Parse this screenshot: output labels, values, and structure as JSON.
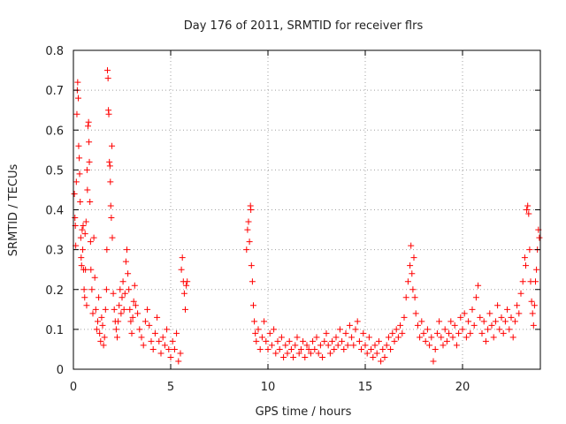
{
  "chart_data": {
    "type": "scatter",
    "title": "Day 176 of 2011, SRMTID for receiver flrs",
    "xlabel": "GPS time / hours",
    "ylabel": "SRMTID / TECUs",
    "xlim": [
      0,
      24
    ],
    "ylim": [
      0,
      0.8
    ],
    "x_ticks": [
      0,
      5,
      10,
      15,
      20
    ],
    "x_tick_labels": [
      "0",
      "5",
      "10",
      "15",
      "20"
    ],
    "y_ticks": [
      0,
      0.1,
      0.2,
      0.3,
      0.4,
      0.5,
      0.6,
      0.7,
      0.8
    ],
    "y_tick_labels": [
      "0",
      "0.1",
      "0.2",
      "0.3",
      "0.4",
      "0.5",
      "0.6",
      "0.7",
      "0.8"
    ],
    "grid": true,
    "marker": "+",
    "colors": {
      "points": "#ff0000",
      "grid": "#a0a0a0",
      "axes": "#000000"
    },
    "series": [
      {
        "name": "SRMTID flrs",
        "points": [
          [
            0.05,
            0.44
          ],
          [
            0.08,
            0.38
          ],
          [
            0.1,
            0.36
          ],
          [
            0.12,
            0.31
          ],
          [
            0.15,
            0.47
          ],
          [
            0.18,
            0.64
          ],
          [
            0.2,
            0.7
          ],
          [
            0.22,
            0.72
          ],
          [
            0.25,
            0.68
          ],
          [
            0.27,
            0.56
          ],
          [
            0.3,
            0.53
          ],
          [
            0.32,
            0.49
          ],
          [
            0.35,
            0.42
          ],
          [
            0.38,
            0.33
          ],
          [
            0.4,
            0.28
          ],
          [
            0.42,
            0.26
          ],
          [
            0.45,
            0.35
          ],
          [
            0.48,
            0.3
          ],
          [
            0.5,
            0.36
          ],
          [
            0.52,
            0.25
          ],
          [
            0.55,
            0.2
          ],
          [
            0.58,
            0.18
          ],
          [
            0.6,
            0.34
          ],
          [
            0.62,
            0.25
          ],
          [
            0.65,
            0.37
          ],
          [
            0.68,
            0.16
          ],
          [
            0.7,
            0.5
          ],
          [
            0.72,
            0.45
          ],
          [
            0.75,
            0.61
          ],
          [
            0.78,
            0.62
          ],
          [
            0.8,
            0.57
          ],
          [
            0.82,
            0.52
          ],
          [
            0.85,
            0.42
          ],
          [
            0.88,
            0.32
          ],
          [
            0.9,
            0.25
          ],
          [
            0.95,
            0.2
          ],
          [
            1.0,
            0.14
          ],
          [
            1.05,
            0.33
          ],
          [
            1.1,
            0.23
          ],
          [
            1.15,
            0.15
          ],
          [
            1.2,
            0.1
          ],
          [
            1.25,
            0.12
          ],
          [
            1.3,
            0.18
          ],
          [
            1.35,
            0.09
          ],
          [
            1.4,
            0.07
          ],
          [
            1.45,
            0.13
          ],
          [
            1.5,
            0.11
          ],
          [
            1.55,
            0.06
          ],
          [
            1.6,
            0.08
          ],
          [
            1.65,
            0.15
          ],
          [
            1.7,
            0.2
          ],
          [
            1.72,
            0.3
          ],
          [
            1.75,
            0.75
          ],
          [
            1.78,
            0.73
          ],
          [
            1.8,
            0.65
          ],
          [
            1.82,
            0.64
          ],
          [
            1.85,
            0.52
          ],
          [
            1.88,
            0.51
          ],
          [
            1.9,
            0.47
          ],
          [
            1.92,
            0.41
          ],
          [
            1.95,
            0.38
          ],
          [
            1.98,
            0.56
          ],
          [
            2.0,
            0.33
          ],
          [
            2.05,
            0.19
          ],
          [
            2.1,
            0.15
          ],
          [
            2.15,
            0.12
          ],
          [
            2.2,
            0.1
          ],
          [
            2.25,
            0.08
          ],
          [
            2.3,
            0.12
          ],
          [
            2.35,
            0.16
          ],
          [
            2.4,
            0.2
          ],
          [
            2.45,
            0.14
          ],
          [
            2.5,
            0.18
          ],
          [
            2.55,
            0.22
          ],
          [
            2.6,
            0.15
          ],
          [
            2.65,
            0.19
          ],
          [
            2.7,
            0.27
          ],
          [
            2.75,
            0.3
          ],
          [
            2.8,
            0.24
          ],
          [
            2.85,
            0.2
          ],
          [
            2.9,
            0.15
          ],
          [
            2.95,
            0.12
          ],
          [
            3.0,
            0.09
          ],
          [
            3.05,
            0.13
          ],
          [
            3.1,
            0.17
          ],
          [
            3.15,
            0.21
          ],
          [
            3.2,
            0.16
          ],
          [
            3.3,
            0.14
          ],
          [
            3.4,
            0.1
          ],
          [
            3.5,
            0.08
          ],
          [
            3.6,
            0.06
          ],
          [
            3.7,
            0.12
          ],
          [
            3.8,
            0.15
          ],
          [
            3.9,
            0.11
          ],
          [
            4.0,
            0.07
          ],
          [
            4.1,
            0.05
          ],
          [
            4.2,
            0.09
          ],
          [
            4.3,
            0.13
          ],
          [
            4.4,
            0.07
          ],
          [
            4.5,
            0.04
          ],
          [
            4.6,
            0.08
          ],
          [
            4.7,
            0.06
          ],
          [
            4.8,
            0.1
          ],
          [
            4.9,
            0.05
          ],
          [
            5.0,
            0.03
          ],
          [
            5.1,
            0.07
          ],
          [
            5.2,
            0.05
          ],
          [
            5.3,
            0.09
          ],
          [
            5.4,
            0.02
          ],
          [
            5.5,
            0.04
          ],
          [
            5.55,
            0.25
          ],
          [
            5.6,
            0.28
          ],
          [
            5.65,
            0.22
          ],
          [
            5.7,
            0.19
          ],
          [
            5.75,
            0.15
          ],
          [
            5.8,
            0.21
          ],
          [
            5.85,
            0.22
          ],
          [
            8.9,
            0.3
          ],
          [
            8.95,
            0.35
          ],
          [
            9.0,
            0.37
          ],
          [
            9.05,
            0.32
          ],
          [
            9.1,
            0.41
          ],
          [
            9.12,
            0.4
          ],
          [
            9.15,
            0.26
          ],
          [
            9.2,
            0.22
          ],
          [
            9.25,
            0.16
          ],
          [
            9.3,
            0.12
          ],
          [
            9.35,
            0.09
          ],
          [
            9.4,
            0.07
          ],
          [
            9.5,
            0.1
          ],
          [
            9.6,
            0.05
          ],
          [
            9.7,
            0.08
          ],
          [
            9.8,
            0.12
          ],
          [
            9.9,
            0.07
          ],
          [
            10.0,
            0.05
          ],
          [
            10.1,
            0.09
          ],
          [
            10.2,
            0.06
          ],
          [
            10.3,
            0.1
          ],
          [
            10.4,
            0.04
          ],
          [
            10.5,
            0.07
          ],
          [
            10.6,
            0.05
          ],
          [
            10.7,
            0.08
          ],
          [
            10.8,
            0.03
          ],
          [
            10.9,
            0.06
          ],
          [
            11.0,
            0.04
          ],
          [
            11.1,
            0.07
          ],
          [
            11.2,
            0.05
          ],
          [
            11.3,
            0.03
          ],
          [
            11.4,
            0.06
          ],
          [
            11.5,
            0.08
          ],
          [
            11.6,
            0.04
          ],
          [
            11.7,
            0.05
          ],
          [
            11.8,
            0.07
          ],
          [
            11.9,
            0.03
          ],
          [
            12.0,
            0.06
          ],
          [
            12.1,
            0.05
          ],
          [
            12.2,
            0.04
          ],
          [
            12.3,
            0.07
          ],
          [
            12.4,
            0.05
          ],
          [
            12.5,
            0.08
          ],
          [
            12.6,
            0.04
          ],
          [
            12.7,
            0.06
          ],
          [
            12.8,
            0.03
          ],
          [
            12.9,
            0.07
          ],
          [
            13.0,
            0.09
          ],
          [
            13.1,
            0.06
          ],
          [
            13.2,
            0.04
          ],
          [
            13.3,
            0.07
          ],
          [
            13.4,
            0.05
          ],
          [
            13.5,
            0.08
          ],
          [
            13.6,
            0.06
          ],
          [
            13.7,
            0.1
          ],
          [
            13.8,
            0.07
          ],
          [
            13.9,
            0.05
          ],
          [
            14.0,
            0.09
          ],
          [
            14.1,
            0.06
          ],
          [
            14.2,
            0.11
          ],
          [
            14.3,
            0.08
          ],
          [
            14.4,
            0.06
          ],
          [
            14.5,
            0.1
          ],
          [
            14.6,
            0.12
          ],
          [
            14.7,
            0.07
          ],
          [
            14.8,
            0.05
          ],
          [
            14.9,
            0.09
          ],
          [
            15.0,
            0.06
          ],
          [
            15.1,
            0.04
          ],
          [
            15.2,
            0.08
          ],
          [
            15.3,
            0.05
          ],
          [
            15.4,
            0.03
          ],
          [
            15.5,
            0.06
          ],
          [
            15.6,
            0.04
          ],
          [
            15.7,
            0.07
          ],
          [
            15.8,
            0.02
          ],
          [
            15.9,
            0.05
          ],
          [
            16.0,
            0.03
          ],
          [
            16.1,
            0.06
          ],
          [
            16.2,
            0.08
          ],
          [
            16.3,
            0.05
          ],
          [
            16.4,
            0.09
          ],
          [
            16.5,
            0.07
          ],
          [
            16.6,
            0.1
          ],
          [
            16.7,
            0.08
          ],
          [
            16.8,
            0.11
          ],
          [
            16.9,
            0.09
          ],
          [
            17.0,
            0.13
          ],
          [
            17.1,
            0.18
          ],
          [
            17.2,
            0.22
          ],
          [
            17.3,
            0.26
          ],
          [
            17.35,
            0.31
          ],
          [
            17.4,
            0.24
          ],
          [
            17.45,
            0.2
          ],
          [
            17.5,
            0.28
          ],
          [
            17.55,
            0.18
          ],
          [
            17.6,
            0.14
          ],
          [
            17.7,
            0.11
          ],
          [
            17.8,
            0.08
          ],
          [
            17.9,
            0.12
          ],
          [
            18.0,
            0.09
          ],
          [
            18.1,
            0.07
          ],
          [
            18.2,
            0.1
          ],
          [
            18.3,
            0.06
          ],
          [
            18.4,
            0.08
          ],
          [
            18.5,
            0.02
          ],
          [
            18.6,
            0.05
          ],
          [
            18.7,
            0.09
          ],
          [
            18.8,
            0.12
          ],
          [
            18.9,
            0.08
          ],
          [
            19.0,
            0.06
          ],
          [
            19.1,
            0.1
          ],
          [
            19.2,
            0.07
          ],
          [
            19.3,
            0.09
          ],
          [
            19.4,
            0.12
          ],
          [
            19.5,
            0.08
          ],
          [
            19.6,
            0.11
          ],
          [
            19.7,
            0.06
          ],
          [
            19.8,
            0.09
          ],
          [
            19.9,
            0.13
          ],
          [
            20.0,
            0.1
          ],
          [
            20.1,
            0.14
          ],
          [
            20.2,
            0.08
          ],
          [
            20.3,
            0.12
          ],
          [
            20.4,
            0.09
          ],
          [
            20.5,
            0.15
          ],
          [
            20.6,
            0.11
          ],
          [
            20.7,
            0.18
          ],
          [
            20.8,
            0.21
          ],
          [
            20.9,
            0.13
          ],
          [
            21.0,
            0.09
          ],
          [
            21.1,
            0.12
          ],
          [
            21.2,
            0.07
          ],
          [
            21.3,
            0.1
          ],
          [
            21.4,
            0.14
          ],
          [
            21.5,
            0.11
          ],
          [
            21.6,
            0.08
          ],
          [
            21.7,
            0.12
          ],
          [
            21.8,
            0.16
          ],
          [
            21.9,
            0.1
          ],
          [
            22.0,
            0.13
          ],
          [
            22.1,
            0.09
          ],
          [
            22.2,
            0.12
          ],
          [
            22.3,
            0.15
          ],
          [
            22.4,
            0.1
          ],
          [
            22.5,
            0.13
          ],
          [
            22.6,
            0.08
          ],
          [
            22.7,
            0.12
          ],
          [
            22.8,
            0.16
          ],
          [
            22.9,
            0.14
          ],
          [
            23.0,
            0.19
          ],
          [
            23.1,
            0.22
          ],
          [
            23.2,
            0.28
          ],
          [
            23.25,
            0.26
          ],
          [
            23.3,
            0.4
          ],
          [
            23.35,
            0.41
          ],
          [
            23.4,
            0.39
          ],
          [
            23.45,
            0.3
          ],
          [
            23.5,
            0.22
          ],
          [
            23.55,
            0.17
          ],
          [
            23.6,
            0.14
          ],
          [
            23.65,
            0.11
          ],
          [
            23.7,
            0.16
          ],
          [
            23.75,
            0.22
          ],
          [
            23.8,
            0.25
          ],
          [
            23.85,
            0.3
          ],
          [
            23.9,
            0.35
          ],
          [
            23.95,
            0.33
          ]
        ]
      }
    ]
  }
}
